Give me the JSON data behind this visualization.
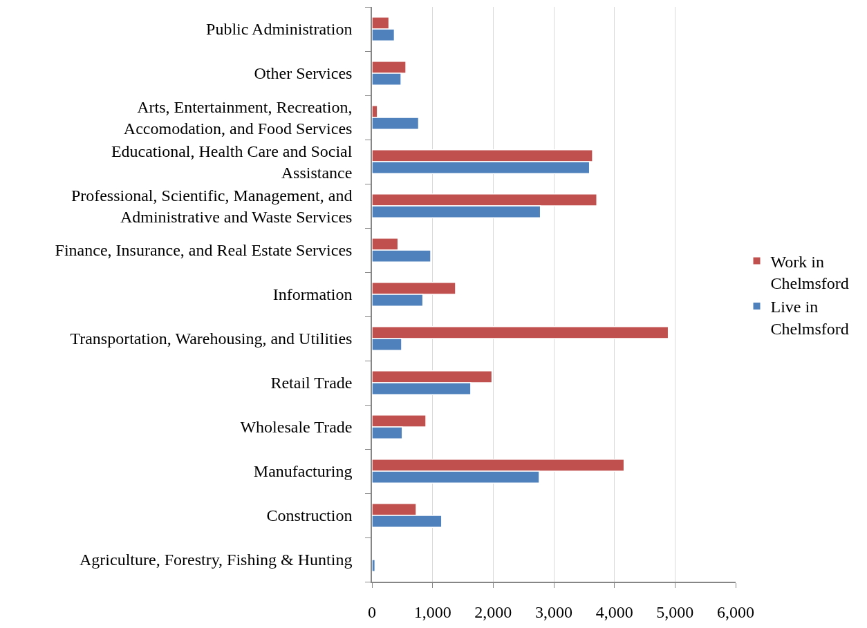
{
  "chart_data": {
    "type": "bar",
    "orientation": "horizontal",
    "categories": [
      "Public Administration",
      "Other Services",
      "Arts, Entertainment, Recreation, Accomodation, and Food Services",
      "Educational, Health Care and Social Assistance",
      "Professional, Scientific, Management, and Administrative and Waste Services",
      "Finance, Insurance, and Real Estate Services",
      "Information",
      "Transportation, Warehousing, and Utilities",
      "Retail Trade",
      "Wholesale Trade",
      "Manufacturing",
      "Construction",
      "Agriculture, Forestry, Fishing & Hunting"
    ],
    "series": [
      {
        "name": "Work in Chelmsford",
        "color": "#c0504d",
        "values": [
          280,
          560,
          90,
          3640,
          3710,
          430,
          1380,
          4890,
          1980,
          890,
          4160,
          730,
          10
        ]
      },
      {
        "name": "Live in Chelmsford",
        "color": "#4f81bd",
        "values": [
          370,
          480,
          770,
          3590,
          2780,
          970,
          840,
          490,
          1630,
          500,
          2760,
          1150,
          50
        ]
      }
    ],
    "xlim": [
      0,
      6000
    ],
    "xticks": [
      0,
      {
        "value": 1000,
        "label": "1,000"
      },
      {
        "value": 2000,
        "label": "2,000"
      },
      {
        "value": 3000,
        "label": "3,000"
      },
      {
        "value": 4000,
        "label": "4,000"
      },
      {
        "value": 5000,
        "label": "5,000"
      },
      {
        "value": 6000,
        "label": "6,000"
      }
    ],
    "grid": "x",
    "legend": "right"
  }
}
